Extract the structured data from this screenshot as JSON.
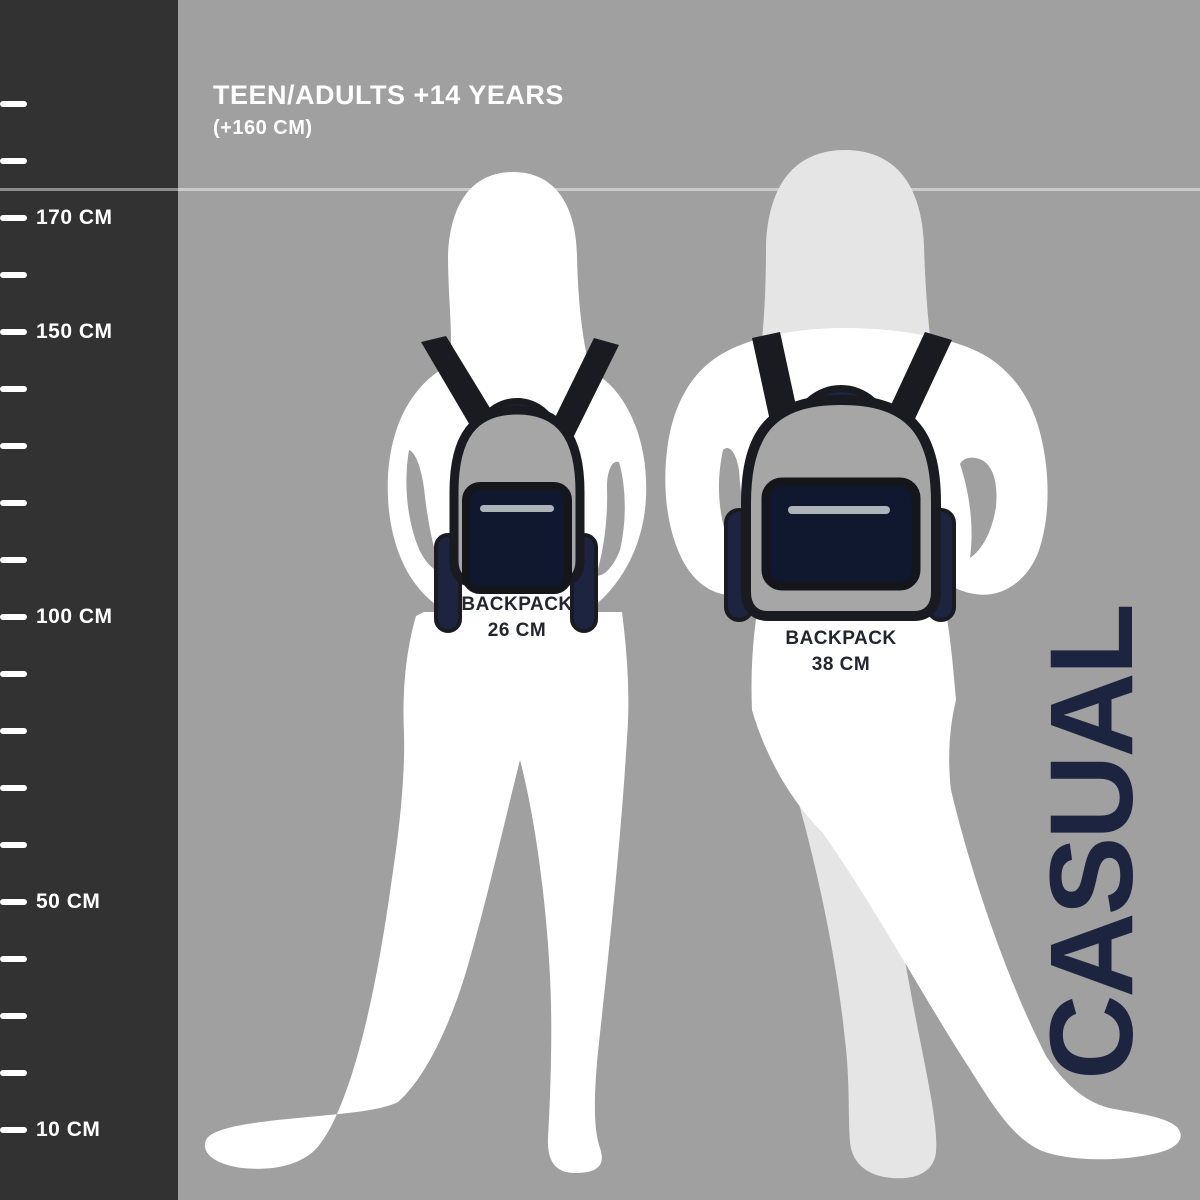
{
  "header": {
    "title": "TEEN/ADULTS +14 YEARS",
    "subtitle": "(+160 CM)"
  },
  "scale_panel": {
    "unit": "CM",
    "ticks": [
      {
        "cm": 190
      },
      {
        "cm": 180
      },
      {
        "cm": 170,
        "label": "170 CM"
      },
      {
        "cm": 160
      },
      {
        "cm": 150,
        "label": "150 CM"
      },
      {
        "cm": 140
      },
      {
        "cm": 130
      },
      {
        "cm": 120
      },
      {
        "cm": 110
      },
      {
        "cm": 100,
        "label": "100 CM"
      },
      {
        "cm": 90
      },
      {
        "cm": 80
      },
      {
        "cm": 70
      },
      {
        "cm": 60
      },
      {
        "cm": 50,
        "label": "50 CM"
      },
      {
        "cm": 40
      },
      {
        "cm": 30
      },
      {
        "cm": 20
      },
      {
        "cm": 10,
        "label": "10 CM"
      }
    ]
  },
  "backpacks": [
    {
      "name": "BACKPACK",
      "size": "26 CM"
    },
    {
      "name": "BACKPACK",
      "size": "38 CM"
    }
  ],
  "side_label": {
    "text": "CASUAL"
  },
  "colors": {
    "background": "#a0a0a0",
    "panel": "#323232",
    "navy": "#1d2440",
    "pocket": "#101830",
    "strap": "#1a1a21",
    "silhouette": "#ffffff",
    "hair_shade": "#e5e5e5",
    "zipper": "#aeb3ba",
    "bag_gray": "#a6a6a6",
    "label_dark": "#23262e"
  }
}
